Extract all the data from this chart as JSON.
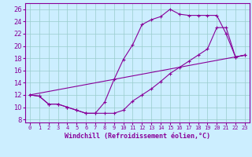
{
  "bg_color": "#cceeff",
  "grid_color": "#99cccc",
  "line_color": "#880099",
  "marker": "+",
  "xlabel": "Windchill (Refroidissement éolien,°C)",
  "ylabel_ticks": [
    8,
    10,
    12,
    14,
    16,
    18,
    20,
    22,
    24,
    26
  ],
  "xtick_labels": [
    "0",
    "1",
    "2",
    "3",
    "4",
    "5",
    "6",
    "7",
    "8",
    "9",
    "10",
    "11",
    "12",
    "13",
    "14",
    "15",
    "16",
    "17",
    "18",
    "19",
    "20",
    "21",
    "22",
    "23"
  ],
  "xlim": [
    -0.5,
    23.5
  ],
  "ylim": [
    7.5,
    27.0
  ],
  "line1_x": [
    0,
    1,
    2,
    3,
    4,
    5,
    6,
    7,
    8,
    9,
    10,
    11,
    12,
    13,
    14,
    15,
    16,
    17,
    18,
    19,
    20,
    21,
    22,
    23
  ],
  "line1_y": [
    12,
    11.8,
    10.5,
    10.5,
    10.0,
    9.5,
    9.0,
    9.0,
    10.8,
    14.5,
    17.8,
    20.2,
    23.5,
    24.3,
    24.8,
    26.0,
    25.2,
    25.0,
    25.0,
    25.0,
    25.0,
    22.0,
    18.2,
    18.5
  ],
  "line2_x": [
    0,
    1,
    2,
    3,
    4,
    5,
    6,
    7,
    8,
    9,
    10,
    11,
    12,
    13,
    14,
    15,
    16,
    17,
    18,
    19,
    20,
    21,
    22,
    23
  ],
  "line2_y": [
    12,
    11.8,
    10.5,
    10.5,
    10.0,
    9.5,
    9.0,
    9.0,
    9.0,
    9.0,
    9.5,
    11.0,
    12.0,
    13.0,
    14.2,
    15.5,
    16.5,
    17.5,
    18.5,
    19.5,
    23.0,
    23.0,
    18.2,
    18.5
  ],
  "line3_x": [
    0,
    23
  ],
  "line3_y": [
    12,
    18.5
  ],
  "title_fontsize": 7,
  "xlabel_fontsize": 6,
  "ytick_fontsize": 6,
  "xtick_fontsize": 5
}
